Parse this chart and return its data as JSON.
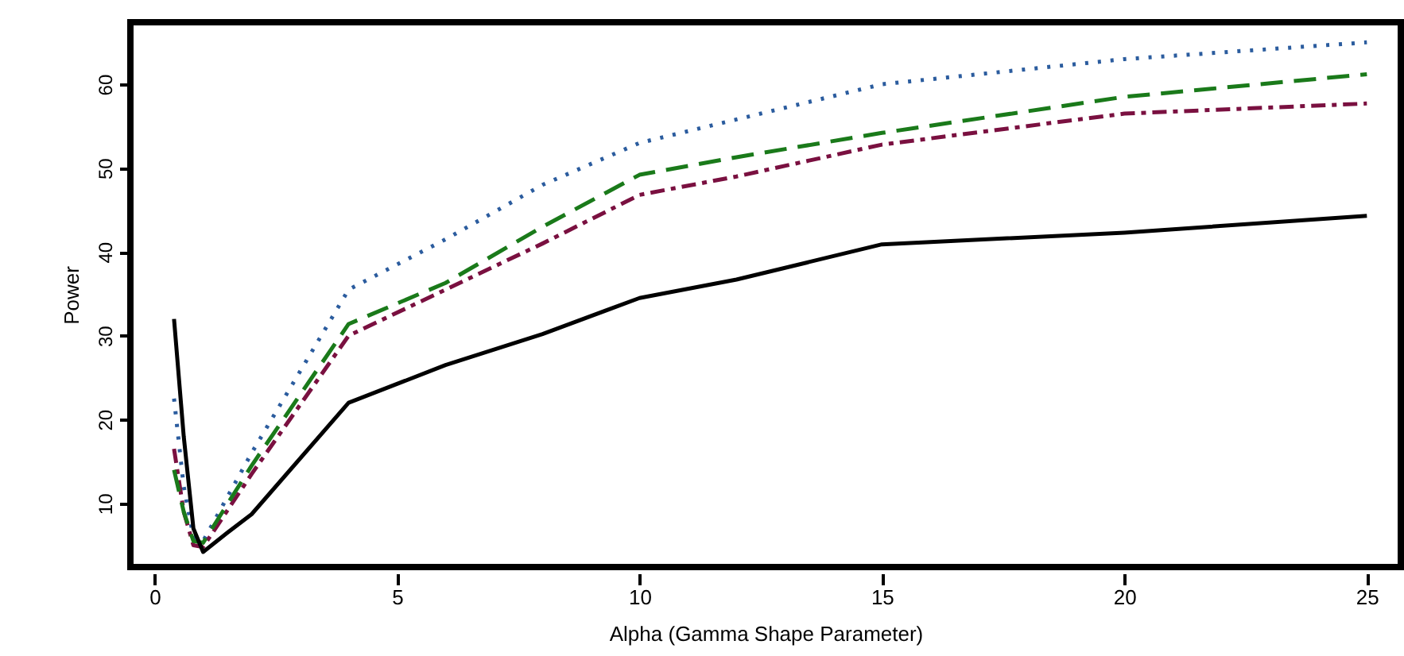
{
  "chart_data": {
    "type": "line",
    "xlabel": "Alpha (Gamma Shape Parameter)",
    "ylabel": "Power",
    "x": [
      0.4,
      0.6,
      0.8,
      1,
      2,
      4,
      6,
      8,
      10,
      12,
      15,
      20,
      25
    ],
    "xlim": [
      -0.5,
      25.7
    ],
    "xticks": [
      0,
      5,
      10,
      15,
      20,
      25
    ],
    "ylim": [
      2.4,
      67.4
    ],
    "yticks": [
      10,
      20,
      30,
      40,
      50,
      60
    ],
    "grid": false,
    "series": [
      {
        "color": "#2b5c9e",
        "line_style": "dotted",
        "values": [
          22.5,
          12,
          6,
          5.5,
          16,
          35.5,
          41.5,
          48,
          53,
          55.8,
          60,
          63,
          65
        ]
      },
      {
        "color": "#7a1040",
        "line_style": "dashdot",
        "values": [
          16.5,
          9,
          5,
          4.8,
          13.5,
          30,
          35.5,
          41,
          46.8,
          49,
          52.8,
          56.5,
          57.7
        ]
      },
      {
        "color": "#1a7a1a",
        "line_style": "dashed",
        "values": [
          14,
          9,
          5.5,
          5.3,
          14.5,
          31.4,
          36.3,
          43,
          49.2,
          51.3,
          54.2,
          58.5,
          61.2
        ]
      },
      {
        "color": "#000000",
        "line_style": "solid",
        "x": [
          0.4,
          0.6,
          0.8,
          1,
          1.5,
          2,
          4,
          6,
          8,
          10,
          12,
          15,
          20,
          25
        ],
        "values": [
          32,
          18,
          7,
          4.2,
          6.5,
          8.7,
          22,
          26.5,
          30.2,
          34.5,
          36.7,
          40.9,
          42.3,
          44.3
        ]
      }
    ]
  }
}
